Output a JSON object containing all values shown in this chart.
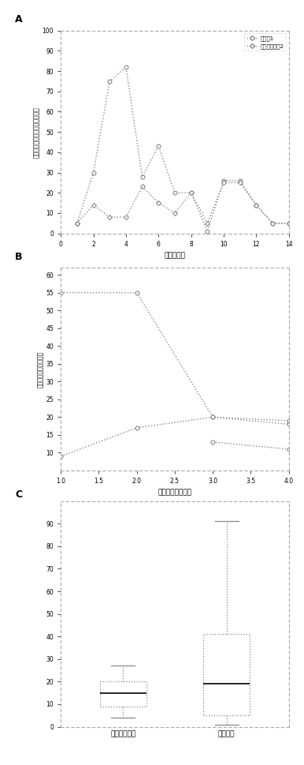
{
  "chart_a": {
    "title_label": "A",
    "xlabel": "経由地点番",
    "ylabel": "ターゲット地点からの経路距離",
    "xlim": [
      0,
      14
    ],
    "ylim": [
      0,
      100
    ],
    "xticks": [
      0,
      2,
      4,
      6,
      8,
      10,
      12,
      14
    ],
    "yticks": [
      0,
      10,
      20,
      30,
      40,
      50,
      60,
      70,
      80,
      90,
      100
    ],
    "series1_x": [
      1,
      2,
      3,
      4,
      5,
      6,
      7,
      8,
      9,
      10,
      11,
      12,
      13,
      14
    ],
    "series1_y": [
      5,
      30,
      75,
      82,
      28,
      43,
      20,
      20,
      1,
      26,
      26,
      14,
      5,
      5
    ],
    "series2_x": [
      1,
      2,
      3,
      4,
      5,
      6,
      7,
      8,
      9,
      10,
      11,
      12,
      13,
      14
    ],
    "series2_y": [
      5,
      14,
      8,
      8,
      23,
      15,
      10,
      20,
      5,
      25,
      25,
      14,
      5,
      5
    ],
    "legend1": "テーク1",
    "legend2": "ベーステーク2"
  },
  "chart_b": {
    "title_label": "B",
    "xlabel": "形状のセグメント",
    "ylabel": "ターゲットからの距離",
    "xlim": [
      1,
      4
    ],
    "ylim": [
      5,
      62
    ],
    "xticks": [
      1.0,
      1.5,
      2.0,
      2.5,
      3.0,
      3.5,
      4.0
    ],
    "yticks": [
      10,
      15,
      20,
      25,
      30,
      35,
      40,
      45,
      50,
      55,
      60
    ],
    "series1_x": [
      1,
      2,
      3,
      4
    ],
    "series1_y": [
      55,
      55,
      20,
      18
    ],
    "series2_x": [
      1,
      2,
      3,
      4
    ],
    "series2_y": [
      9,
      17,
      20,
      19
    ],
    "series3_x": [
      3,
      4
    ],
    "series3_y": [
      13,
      11
    ]
  },
  "chart_c": {
    "title_label": "C",
    "categories": [
      "ベースライン",
      "対象者番"
    ],
    "ylim": [
      0,
      100
    ],
    "yticks": [
      0,
      10,
      20,
      30,
      40,
      50,
      60,
      70,
      80,
      90
    ],
    "box1": {
      "whislo": 4,
      "q1": 9,
      "med": 15,
      "q3": 20,
      "whishi": 27
    },
    "box2": {
      "whislo": 1,
      "q1": 5,
      "med": 19,
      "q3": 41,
      "whishi": 91
    }
  }
}
